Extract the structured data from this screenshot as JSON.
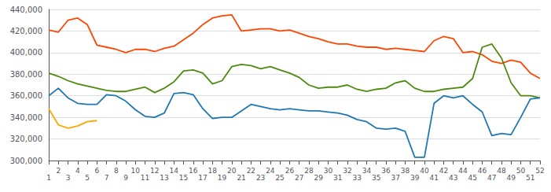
{
  "chart_data": {
    "type": "line",
    "x": [
      1,
      2,
      3,
      4,
      5,
      6,
      7,
      8,
      9,
      10,
      11,
      12,
      13,
      14,
      15,
      16,
      17,
      18,
      19,
      20,
      21,
      22,
      23,
      24,
      25,
      26,
      27,
      28,
      29,
      30,
      31,
      32,
      33,
      34,
      35,
      36,
      37,
      38,
      39,
      40,
      41,
      42,
      43,
      44,
      45,
      46,
      47,
      48,
      49,
      50,
      51,
      52
    ],
    "series": [
      {
        "color": "#FF4500",
        "values": [
          421000,
          419000,
          430000,
          432000,
          426000,
          407000,
          405000,
          403000,
          400000,
          403000,
          403000,
          401000,
          404000,
          406000,
          412000,
          418000,
          426000,
          432000,
          434000,
          435000,
          420000,
          421000,
          422000,
          422000,
          420000,
          421000,
          418000,
          415000,
          413000,
          410000,
          408000,
          408000,
          406000,
          405000,
          405000,
          403000,
          404000,
          403000,
          402000,
          401000,
          411000,
          415000,
          413000,
          400000,
          401000,
          398000,
          392000,
          390000,
          393000,
          391000,
          381000,
          376000
        ]
      },
      {
        "color": "#4F8A10",
        "values": [
          381000,
          378000,
          374000,
          371000,
          369000,
          367000,
          365000,
          364000,
          364000,
          366000,
          368000,
          363000,
          367000,
          373000,
          383000,
          384000,
          381000,
          371000,
          374000,
          387000,
          389000,
          388000,
          385000,
          387000,
          384000,
          381000,
          377000,
          370000,
          367000,
          368000,
          368000,
          370000,
          366000,
          364000,
          366000,
          367000,
          372000,
          374000,
          367000,
          364000,
          364000,
          366000,
          367000,
          368000,
          376000,
          405000,
          408000,
          395000,
          372000,
          360000,
          360000,
          358000
        ]
      },
      {
        "color": "#1F77B4",
        "values": [
          360000,
          367000,
          358000,
          353000,
          352000,
          352000,
          361000,
          360000,
          355000,
          347000,
          341000,
          340000,
          344000,
          362000,
          363000,
          361000,
          348000,
          339000,
          340000,
          340000,
          346000,
          352000,
          350000,
          348000,
          347000,
          348000,
          347000,
          346000,
          346000,
          345000,
          344000,
          342000,
          338000,
          336000,
          330000,
          329000,
          330000,
          327000,
          303000,
          303000,
          353000,
          360000,
          358000,
          360000,
          352000,
          345000,
          323000,
          325000,
          324000,
          340000,
          357000,
          358000
        ]
      },
      {
        "color": "#FFA500",
        "x": [
          1,
          2,
          3,
          4,
          5,
          6
        ],
        "values": [
          348000,
          333000,
          330000,
          332000,
          336000,
          337000
        ]
      }
    ],
    "xlim": [
      1,
      52
    ],
    "xticks": [
      1,
      2,
      3,
      4,
      5,
      6,
      7,
      8,
      9,
      10,
      11,
      12,
      13,
      14,
      15,
      16,
      17,
      18,
      19,
      20,
      21,
      22,
      23,
      24,
      25,
      26,
      27,
      28,
      29,
      30,
      31,
      32,
      33,
      34,
      35,
      36,
      37,
      38,
      39,
      40,
      41,
      42,
      43,
      44,
      45,
      46,
      47,
      48,
      49,
      50,
      51,
      52
    ],
    "ylim": [
      300000,
      440000
    ],
    "yticks": [
      {
        "value": 300000,
        "label": "300,000"
      },
      {
        "value": 320000,
        "label": "320,000"
      },
      {
        "value": 340000,
        "label": "340,000"
      },
      {
        "value": 360000,
        "label": "360,000"
      },
      {
        "value": 380000,
        "label": "380,000"
      },
      {
        "value": 400000,
        "label": "400,000"
      },
      {
        "value": 420000,
        "label": "420,000"
      },
      {
        "value": 440000,
        "label": "440,000"
      }
    ],
    "grid": true
  }
}
